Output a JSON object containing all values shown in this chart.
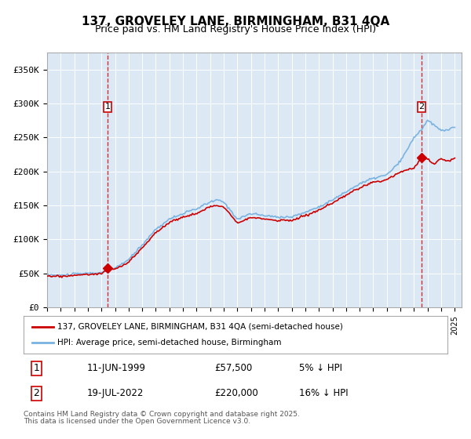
{
  "title": "137, GROVELEY LANE, BIRMINGHAM, B31 4QA",
  "subtitle": "Price paid vs. HM Land Registry's House Price Index (HPI)",
  "bg_color": "#dce9f5",
  "plot_bg_color": "#dce9f5",
  "hpi_color": "#7ab3e0",
  "price_color": "#cc0000",
  "ylim": [
    0,
    375000
  ],
  "yticks": [
    0,
    50000,
    100000,
    150000,
    200000,
    250000,
    300000,
    350000
  ],
  "ytick_labels": [
    "£0",
    "£50K",
    "£100K",
    "£150K",
    "£200K",
    "£250K",
    "£300K",
    "£350K"
  ],
  "sale1_date": 1999.44,
  "sale1_price": 57500,
  "sale1_label": "1",
  "sale2_date": 2022.55,
  "sale2_price": 220000,
  "sale2_label": "2",
  "legend_line1": "137, GROVELEY LANE, BIRMINGHAM, B31 4QA (semi-detached house)",
  "legend_line2": "HPI: Average price, semi-detached house, Birmingham",
  "footnote1": "Contains HM Land Registry data © Crown copyright and database right 2025.",
  "footnote2": "This data is licensed under the Open Government Licence v3.0.",
  "table_row1": [
    "1",
    "11-JUN-1999",
    "£57,500",
    "5% ↓ HPI"
  ],
  "table_row2": [
    "2",
    "19-JUL-2022",
    "£220,000",
    "16% ↓ HPI"
  ]
}
